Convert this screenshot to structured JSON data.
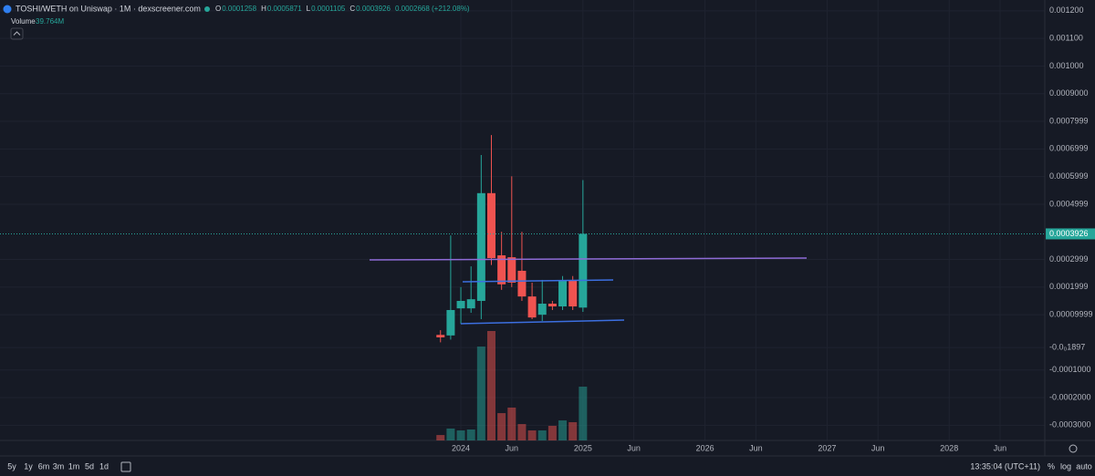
{
  "chart_data": {
    "type": "candlestick",
    "title": "TOSHI/WETH on Uniswap · 1M · dexscreener.com",
    "x": [
      0,
      1,
      2,
      3,
      4,
      5,
      6,
      7,
      8,
      9,
      10,
      11,
      12,
      13,
      14
    ],
    "open": [
      2.7e-05,
      2.5e-05,
      0.000123,
      0.000123,
      0.00015,
      0.00054,
      0.000315,
      0.000308,
      0.000259,
      0.000166,
      0.0001,
      0.00014,
      0.00013,
      0.000223,
      0.0001258
    ],
    "high": [
      4.4e-05,
      0.000387,
      0.0002,
      0.000275,
      0.000678,
      0.00075,
      0.0004,
      0.000601,
      0.0004,
      0.000216,
      0.000226,
      0.00015,
      0.00024,
      0.00024,
      0.0005871
    ],
    "low": [
      0,
      1e-05,
      6.7e-05,
      0.000107,
      8.4e-05,
      0.00028,
      0.00019,
      0.0002,
      0.00015,
      8.4e-05,
      7.7e-05,
      0.000117,
      0.000117,
      0.000117,
      0.0001105
    ],
    "close": [
      1.8e-05,
      0.000117,
      0.00015,
      0.000156,
      0.00054,
      0.000305,
      0.00021,
      0.000216,
      0.000166,
      9e-05,
      0.00014,
      0.00013,
      0.000223,
      0.00013,
      0.0003926
    ],
    "volume_name": "Volume",
    "volume": [
      4.0,
      8.8,
      7.4,
      8.1,
      69.4,
      80.9,
      20.2,
      24.3,
      12.1,
      7.4,
      7.4,
      10.8,
      14.8,
      13.5,
      39.764
    ],
    "volume_last_label": "39.764M",
    "up_color": "#26a69a",
    "down_color": "#ef5350",
    "xlim": [
      -43.3,
      59.4
    ],
    "xticks": [
      {
        "value": 2,
        "label": "2024"
      },
      {
        "value": 7,
        "label": "Jun"
      },
      {
        "value": 14,
        "label": "2025"
      },
      {
        "value": 19,
        "label": "Jun"
      },
      {
        "value": 26,
        "label": "2026"
      },
      {
        "value": 31,
        "label": "Jun"
      },
      {
        "value": 38,
        "label": "2027"
      },
      {
        "value": 43,
        "label": "Jun"
      },
      {
        "value": 50,
        "label": "2028"
      },
      {
        "value": 55,
        "label": "Jun"
      }
    ],
    "ylim": [
      -0.000355,
      0.001239
    ],
    "yticks": [
      {
        "value": 0.0012,
        "label": "0.001200"
      },
      {
        "value": 0.0011,
        "label": "0.001100"
      },
      {
        "value": 0.001,
        "label": "0.001000"
      },
      {
        "value": 0.0009,
        "label": "0.0009000"
      },
      0.0007999,
      0.0006999,
      0.0005999,
      0.0004999,
      0.0002999,
      0.0001999,
      9.999e-05,
      {
        "value": -1.897e-05,
        "label": "-0.0₀1897"
      },
      {
        "value": -0.0001,
        "label": "-0.0001000"
      },
      {
        "value": -0.0002,
        "label": "-0.0002000"
      },
      {
        "value": -0.0003,
        "label": "-0.0003000"
      }
    ],
    "grid": true,
    "change_label": "0.0002668 (+212.08%)"
  },
  "toolbar": {
    "ranges": [
      "5y",
      "1y",
      "6m",
      "3m",
      "1m",
      "5d",
      "1d"
    ],
    "clock": "13:35:04 (UTC+11)",
    "percent": "%",
    "log": "log",
    "auto": "auto"
  },
  "legend": {
    "o": "O",
    "h": "H",
    "l": "L",
    "c": "C"
  }
}
